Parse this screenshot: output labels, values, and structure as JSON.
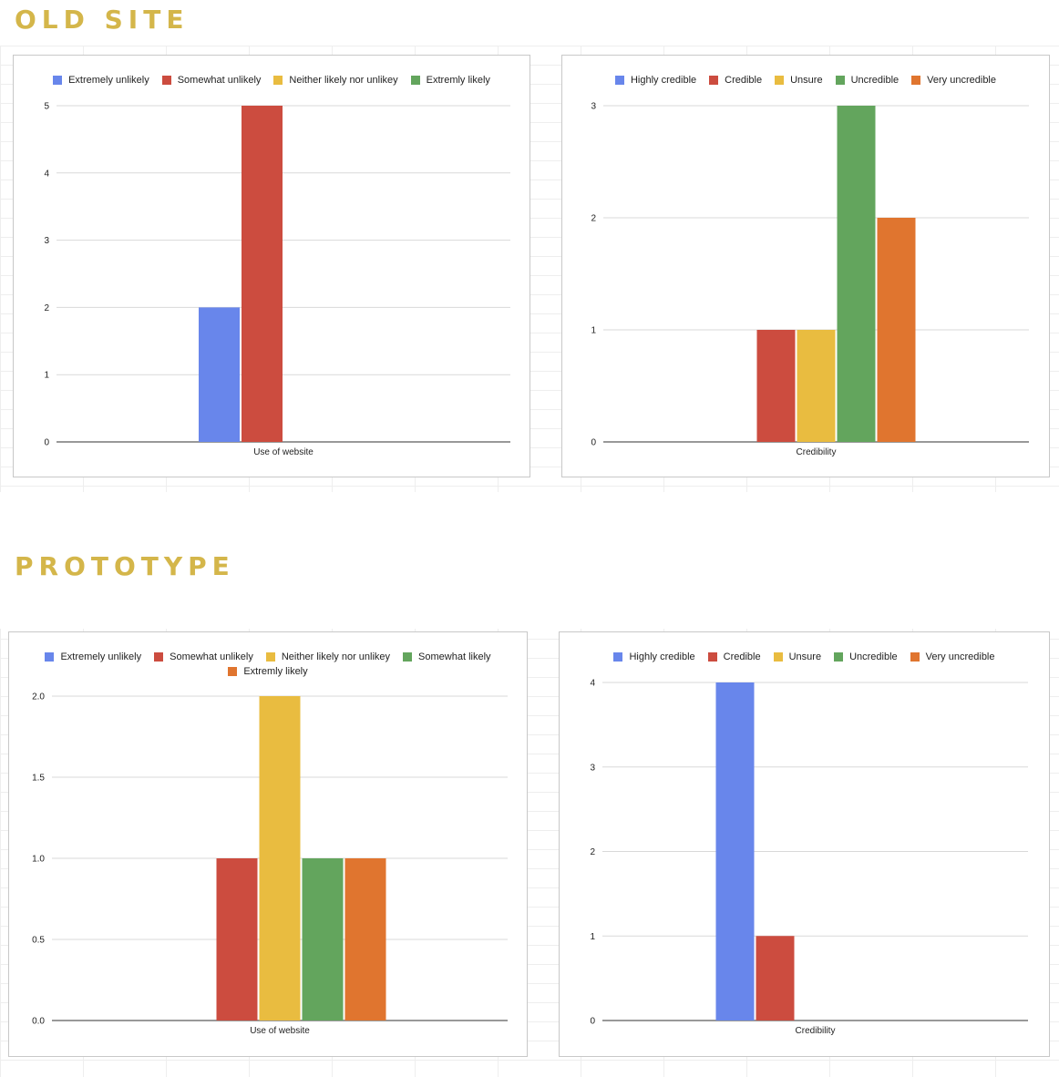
{
  "sections": [
    {
      "title": "OLD SITE"
    },
    {
      "title": "PROTOTYPE"
    }
  ],
  "chart_data": [
    {
      "type": "bar",
      "categories": [
        "Use of website"
      ],
      "series": [
        {
          "name": "Extremely unlikely",
          "color": "#6886eb",
          "values": [
            2
          ]
        },
        {
          "name": "Somewhat unlikely",
          "color": "#cc4c3f",
          "values": [
            5
          ]
        },
        {
          "name": "Neither likely nor unlikey",
          "color": "#e9bc40",
          "values": [
            0
          ]
        },
        {
          "name": "Extremly likely",
          "color": "#63a55d",
          "values": [
            0
          ]
        }
      ],
      "yticks": [
        "0",
        "1",
        "2",
        "3",
        "4",
        "5"
      ],
      "ylim": [
        0,
        5
      ],
      "legend": "top",
      "grid": true
    },
    {
      "type": "bar",
      "categories": [
        "Credibility"
      ],
      "series": [
        {
          "name": "Highly credible",
          "color": "#6886eb",
          "values": [
            0
          ]
        },
        {
          "name": "Credible",
          "color": "#cc4c3f",
          "values": [
            1
          ]
        },
        {
          "name": "Unsure",
          "color": "#e9bc40",
          "values": [
            1
          ]
        },
        {
          "name": "Uncredible",
          "color": "#63a55d",
          "values": [
            3
          ]
        },
        {
          "name": "Very uncredible",
          "color": "#e0752f",
          "values": [
            2
          ]
        }
      ],
      "yticks": [
        "0",
        "1",
        "2",
        "3"
      ],
      "ylim": [
        0,
        3
      ],
      "legend": "top",
      "grid": true
    },
    {
      "type": "bar",
      "categories": [
        "Use of website"
      ],
      "series": [
        {
          "name": "Extremely unlikely",
          "color": "#6886eb",
          "values": [
            0
          ]
        },
        {
          "name": "Somewhat unlikely",
          "color": "#cc4c3f",
          "values": [
            1
          ]
        },
        {
          "name": "Neither likely nor unlikey",
          "color": "#e9bc40",
          "values": [
            2
          ]
        },
        {
          "name": "Somewhat likely",
          "color": "#63a55d",
          "values": [
            1
          ]
        },
        {
          "name": "Extremly likely",
          "color": "#e0752f",
          "values": [
            1
          ]
        }
      ],
      "yticks": [
        "0.0",
        "0.5",
        "1.0",
        "1.5",
        "2.0"
      ],
      "ylim": [
        0,
        2
      ],
      "legend": "top",
      "grid": true
    },
    {
      "type": "bar",
      "categories": [
        "Credibility"
      ],
      "series": [
        {
          "name": "Highly credible",
          "color": "#6886eb",
          "values": [
            4
          ]
        },
        {
          "name": "Credible",
          "color": "#cc4c3f",
          "values": [
            1
          ]
        },
        {
          "name": "Unsure",
          "color": "#e9bc40",
          "values": [
            0
          ]
        },
        {
          "name": "Uncredible",
          "color": "#63a55d",
          "values": [
            0
          ]
        },
        {
          "name": "Very uncredible",
          "color": "#e0752f",
          "values": [
            0
          ]
        }
      ],
      "yticks": [
        "0",
        "1",
        "2",
        "3",
        "4"
      ],
      "ylim": [
        0,
        4
      ],
      "legend": "top",
      "grid": true
    }
  ]
}
